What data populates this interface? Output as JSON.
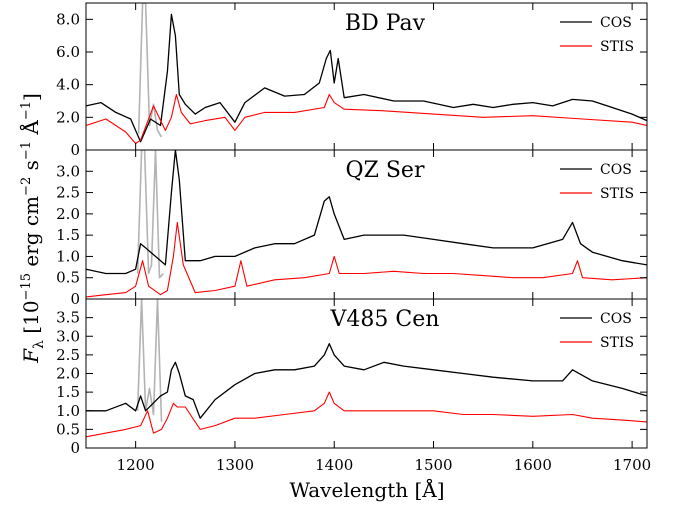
{
  "chart_data": {
    "type": "line",
    "xlabel": "Wavelength [Å]",
    "ylabel": "F_λ [10^-15 erg cm^-2 s^-1 Å^-1]",
    "xlim": [
      1150,
      1715
    ],
    "xticks": [
      1200,
      1300,
      1400,
      1500,
      1600,
      1700
    ],
    "legend_position": "top-right",
    "colors": {
      "COS": "#000000",
      "STIS": "#ff0000",
      "masked": "#b3b3b3"
    },
    "panels": [
      {
        "title": "BD Pav",
        "ylim": [
          0,
          9.0
        ],
        "yticks": [
          0,
          2.0,
          4.0,
          6.0,
          8.0
        ],
        "ytick_labels": [
          "0",
          "2.0",
          "4.0",
          "6.0",
          "8.0"
        ],
        "series": [
          {
            "name": "COS",
            "x": [
              1150,
              1165,
              1180,
              1195,
              1200,
              1205,
              1215,
              1225,
              1232,
              1236,
              1240,
              1244,
              1250,
              1260,
              1270,
              1285,
              1300,
              1310,
              1330,
              1350,
              1370,
              1385,
              1392,
              1396,
              1400,
              1404,
              1410,
              1430,
              1460,
              1490,
              1520,
              1540,
              1560,
              1580,
              1600,
              1620,
              1640,
              1660,
              1680,
              1700,
              1715
            ],
            "y": [
              2.7,
              2.9,
              2.3,
              1.9,
              1.2,
              0.5,
              1.9,
              1.5,
              4.8,
              8.3,
              7.0,
              3.4,
              2.8,
              2.2,
              2.6,
              2.9,
              1.7,
              2.9,
              3.8,
              3.3,
              3.4,
              4.1,
              5.6,
              6.1,
              4.1,
              5.6,
              3.2,
              3.4,
              3.0,
              3.0,
              2.6,
              2.8,
              2.6,
              2.8,
              2.9,
              2.7,
              3.1,
              3.0,
              2.6,
              2.2,
              1.8
            ]
          },
          {
            "name": "STIS",
            "x": [
              1150,
              1170,
              1190,
              1200,
              1205,
              1218,
              1230,
              1236,
              1241,
              1246,
              1255,
              1270,
              1290,
              1300,
              1310,
              1330,
              1360,
              1390,
              1395,
              1400,
              1410,
              1450,
              1500,
              1550,
              1600,
              1650,
              1700,
              1715
            ],
            "y": [
              1.5,
              1.9,
              1.1,
              0.4,
              0.6,
              2.7,
              1.2,
              2.0,
              3.4,
              2.3,
              1.6,
              1.8,
              2.0,
              1.2,
              2.0,
              2.3,
              2.3,
              2.6,
              3.4,
              2.9,
              2.5,
              2.4,
              2.2,
              2.0,
              2.1,
              1.9,
              1.7,
              1.5
            ]
          }
        ],
        "masked": {
          "x": [
            1203,
            1207,
            1210,
            1214,
            1218,
            1222,
            1226
          ],
          "y": [
            1.0,
            9.0,
            9.0,
            1.5,
            2.8,
            1.2,
            0.8
          ]
        }
      },
      {
        "title": "QZ Ser",
        "ylim": [
          0,
          3.5
        ],
        "yticks": [
          0,
          0.5,
          1.0,
          1.5,
          2.0,
          2.5,
          3.0
        ],
        "ytick_labels": [
          "0",
          "0.5",
          "1.0",
          "1.5",
          "2.0",
          "2.5",
          "3.0"
        ],
        "series": [
          {
            "name": "COS",
            "x": [
              1150,
              1170,
              1190,
              1200,
              1205,
              1210,
              1220,
              1230,
              1236,
              1240,
              1244,
              1250,
              1265,
              1280,
              1300,
              1320,
              1340,
              1360,
              1380,
              1390,
              1395,
              1400,
              1410,
              1430,
              1450,
              1470,
              1500,
              1530,
              1560,
              1600,
              1630,
              1640,
              1648,
              1660,
              1690,
              1715
            ],
            "y": [
              0.7,
              0.6,
              0.6,
              0.7,
              1.3,
              1.2,
              1.0,
              0.8,
              2.5,
              3.5,
              2.8,
              0.9,
              0.9,
              1.0,
              1.0,
              1.2,
              1.3,
              1.3,
              1.5,
              2.3,
              2.4,
              2.0,
              1.4,
              1.5,
              1.5,
              1.5,
              1.4,
              1.3,
              1.2,
              1.2,
              1.4,
              1.8,
              1.3,
              1.1,
              0.9,
              0.8
            ]
          },
          {
            "name": "STIS",
            "x": [
              1150,
              1170,
              1190,
              1200,
              1207,
              1213,
              1225,
              1232,
              1238,
              1242,
              1248,
              1260,
              1280,
              1300,
              1306,
              1312,
              1340,
              1370,
              1395,
              1400,
              1405,
              1430,
              1460,
              1490,
              1520,
              1550,
              1580,
              1610,
              1640,
              1645,
              1650,
              1680,
              1715
            ],
            "y": [
              0.05,
              0.1,
              0.15,
              0.3,
              0.9,
              0.3,
              0.1,
              0.2,
              1.0,
              1.8,
              0.8,
              0.15,
              0.2,
              0.3,
              0.9,
              0.3,
              0.45,
              0.5,
              0.6,
              1.0,
              0.6,
              0.6,
              0.65,
              0.6,
              0.6,
              0.55,
              0.5,
              0.5,
              0.6,
              0.9,
              0.5,
              0.45,
              0.5
            ]
          }
        ],
        "masked": {
          "x": [
            1202,
            1206,
            1209,
            1213,
            1216,
            1220,
            1224,
            1228
          ],
          "y": [
            0.6,
            3.5,
            3.5,
            0.6,
            0.8,
            3.5,
            0.5,
            0.6
          ]
        }
      },
      {
        "title": "V485 Cen",
        "ylim": [
          0,
          4.0
        ],
        "yticks": [
          0,
          0.5,
          1.0,
          1.5,
          2.0,
          2.5,
          3.0,
          3.5
        ],
        "ytick_labels": [
          "0",
          "0.5",
          "1.0",
          "1.5",
          "2.0",
          "2.5",
          "3.0",
          "3.5"
        ],
        "series": [
          {
            "name": "COS",
            "x": [
              1150,
              1170,
              1190,
              1200,
              1205,
              1210,
              1225,
              1232,
              1236,
              1240,
              1244,
              1250,
              1258,
              1265,
              1280,
              1300,
              1320,
              1340,
              1360,
              1380,
              1390,
              1395,
              1400,
              1410,
              1430,
              1450,
              1470,
              1500,
              1530,
              1560,
              1600,
              1630,
              1640,
              1660,
              1690,
              1715
            ],
            "y": [
              1.0,
              1.0,
              1.2,
              1.0,
              1.4,
              1.0,
              1.4,
              1.5,
              2.1,
              2.3,
              2.0,
              1.4,
              1.3,
              0.8,
              1.3,
              1.7,
              2.0,
              2.1,
              2.1,
              2.2,
              2.5,
              2.8,
              2.5,
              2.2,
              2.1,
              2.3,
              2.2,
              2.1,
              2.0,
              1.9,
              1.8,
              1.8,
              2.1,
              1.8,
              1.6,
              1.4
            ]
          },
          {
            "name": "STIS",
            "x": [
              1150,
              1170,
              1190,
              1205,
              1212,
              1218,
              1226,
              1232,
              1238,
              1242,
              1250,
              1265,
              1280,
              1300,
              1320,
              1350,
              1380,
              1390,
              1395,
              1400,
              1410,
              1440,
              1470,
              1500,
              1530,
              1560,
              1600,
              1640,
              1660,
              1690,
              1715
            ],
            "y": [
              0.3,
              0.4,
              0.5,
              0.6,
              1.0,
              0.4,
              0.5,
              0.8,
              1.2,
              1.1,
              1.1,
              0.5,
              0.6,
              0.8,
              0.8,
              0.9,
              1.0,
              1.2,
              1.5,
              1.2,
              1.0,
              1.0,
              1.0,
              1.0,
              0.9,
              0.9,
              0.85,
              0.9,
              0.8,
              0.75,
              0.7
            ]
          }
        ],
        "masked": {
          "x": [
            1202,
            1206,
            1210,
            1214,
            1218,
            1222,
            1226
          ],
          "y": [
            1.0,
            4.0,
            1.0,
            1.6,
            0.9,
            4.0,
            0.7
          ]
        }
      }
    ]
  }
}
